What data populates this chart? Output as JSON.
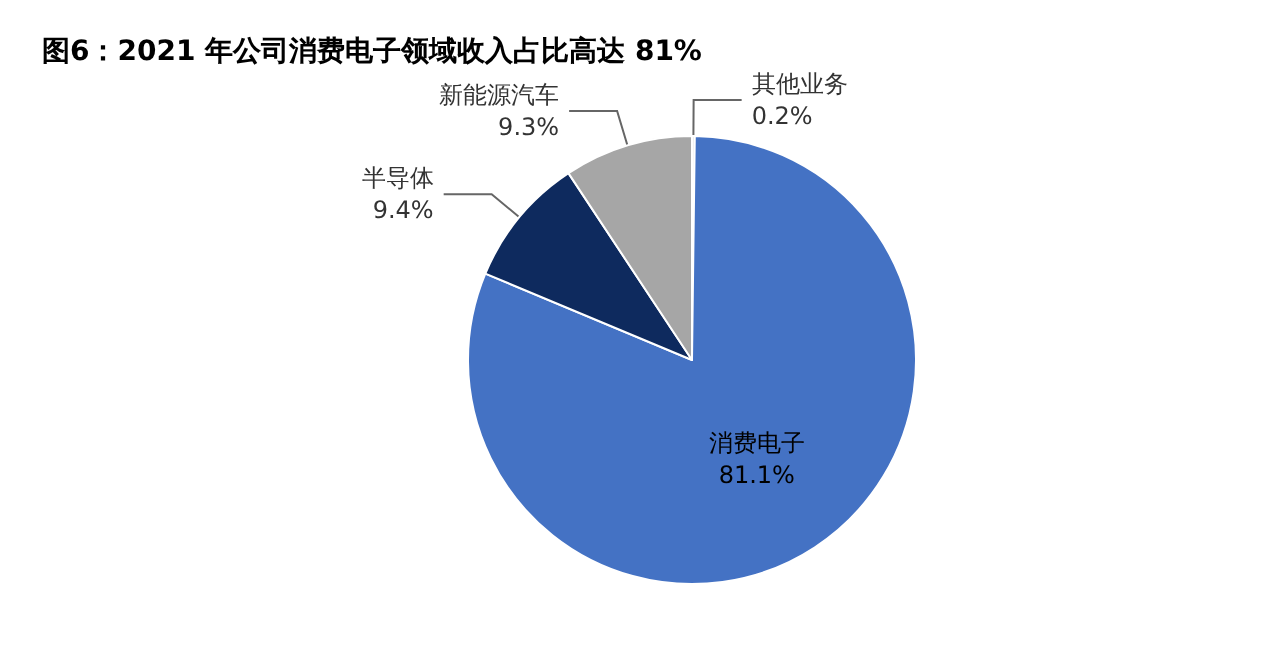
{
  "chart_data": {
    "type": "pie",
    "title": "图6：2021 年公司消费电子领域收入占比高达 81%",
    "categories": [
      "其他业务",
      "消费电子",
      "半导体",
      "新能源汽车"
    ],
    "values": [
      0.2,
      81.1,
      9.4,
      9.3
    ],
    "value_labels": [
      "0.2%",
      "81.1%",
      "9.4%",
      "9.3%"
    ],
    "colors": [
      "#e7e6e6",
      "#4472c4",
      "#0e2a5e",
      "#a6a6a6"
    ],
    "legend": false
  }
}
